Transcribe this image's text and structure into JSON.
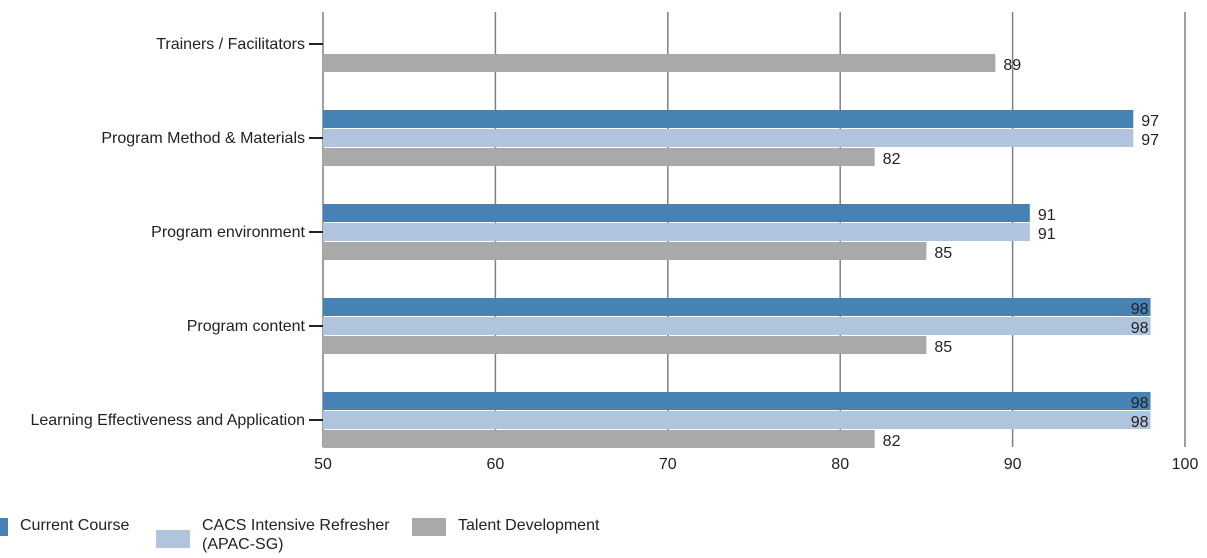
{
  "chart_data": {
    "type": "bar",
    "orientation": "horizontal",
    "categories": [
      "Trainers / Facilitators",
      "Program Method & Materials",
      "Program environment",
      "Program content",
      "Learning Effectiveness and Application"
    ],
    "series": [
      {
        "name": "Current Course",
        "color": "#4682b4",
        "values": [
          null,
          97,
          91,
          98,
          98
        ]
      },
      {
        "name": "CACS Intensive Refresher (APAC-SG)",
        "color": "#b0c4de",
        "values": [
          null,
          97,
          91,
          98,
          98
        ]
      },
      {
        "name": "Talent Development",
        "color": "#a9a9a9",
        "values": [
          89,
          82,
          85,
          85,
          82
        ]
      }
    ],
    "xlim": [
      50,
      100
    ],
    "xticks": [
      50,
      60,
      70,
      80,
      90,
      100
    ],
    "grid": true,
    "legend_position": "bottom-left",
    "title": "",
    "xlabel": "",
    "ylabel": ""
  },
  "legend": [
    {
      "label": "Current Course",
      "color": "#4682b4"
    },
    {
      "label": "CACS Intensive Refresher",
      "label2": "(APAC-SG)",
      "color": "#b0c4de"
    },
    {
      "label": "Talent Development",
      "color": "#a9a9a9"
    }
  ]
}
